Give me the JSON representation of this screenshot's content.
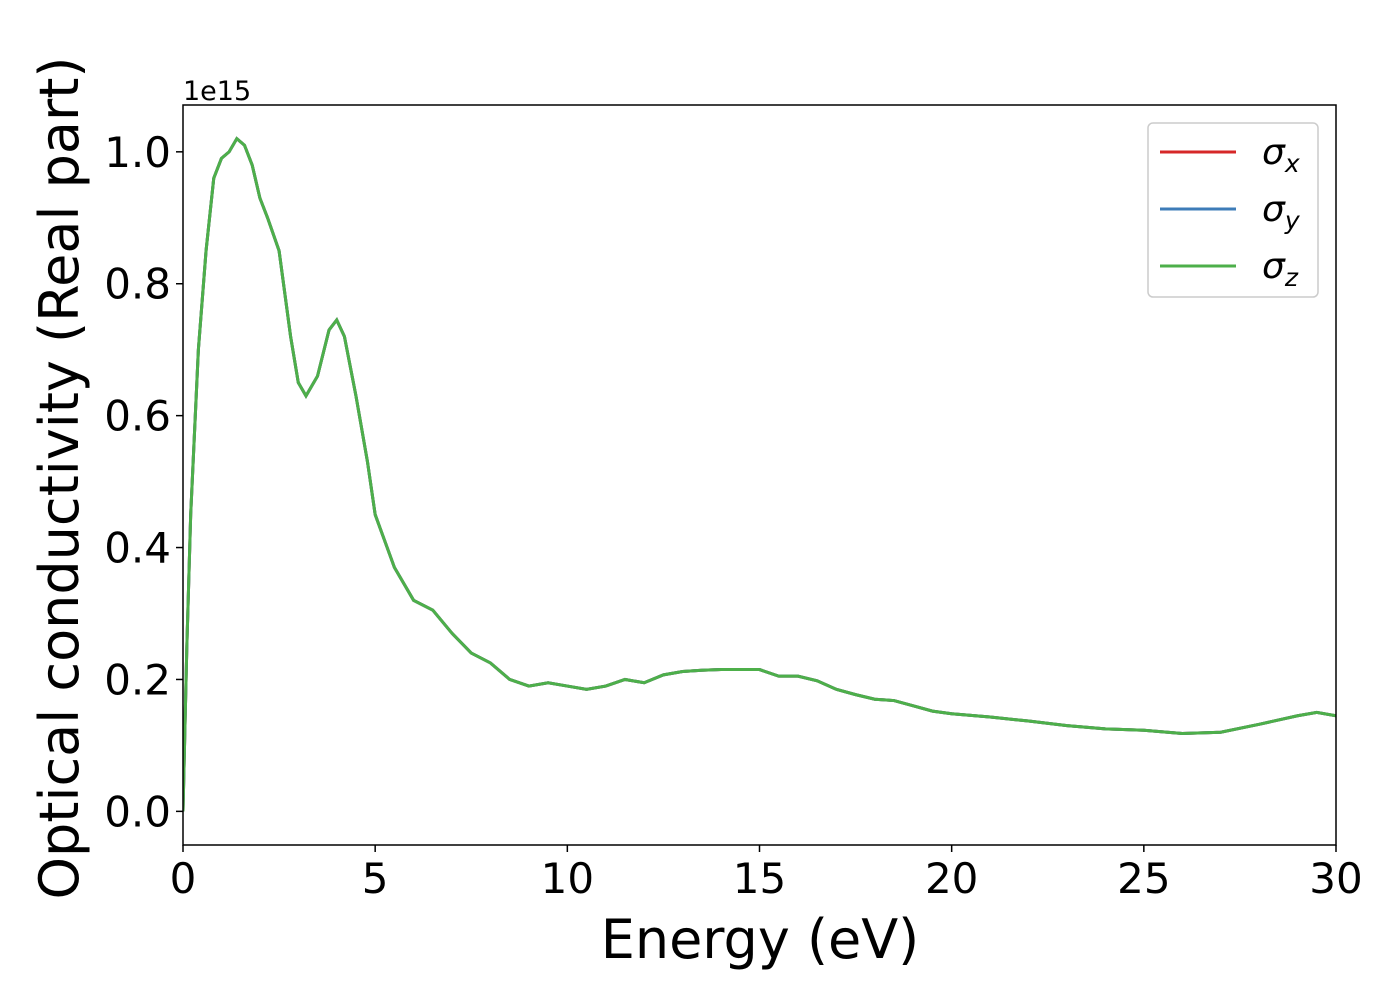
{
  "chart_data": {
    "type": "line",
    "xlabel": "Energy (eV)",
    "ylabel": "Optical conductivity (Real part)",
    "offset_text": "1e15",
    "x": [
      0,
      0.1,
      0.2,
      0.4,
      0.6,
      0.8,
      1.0,
      1.2,
      1.4,
      1.6,
      1.8,
      2.0,
      2.2,
      2.5,
      2.8,
      3.0,
      3.2,
      3.5,
      3.8,
      4.0,
      4.2,
      4.5,
      4.8,
      5.0,
      5.5,
      6.0,
      6.5,
      7.0,
      7.5,
      8.0,
      8.5,
      9.0,
      9.5,
      10,
      10.5,
      11,
      11.5,
      12,
      12.5,
      13,
      13.5,
      14,
      14.5,
      15,
      15.5,
      16,
      16.5,
      17,
      17.5,
      18,
      18.5,
      19,
      19.5,
      20,
      21,
      22,
      23,
      24,
      25,
      26,
      27,
      28,
      29,
      29.5,
      30
    ],
    "series": [
      {
        "name": "σx",
        "color": "#d62728",
        "values": [
          0,
          0.25,
          0.45,
          0.7,
          0.85,
          0.96,
          0.99,
          1.0,
          1.02,
          1.01,
          0.98,
          0.93,
          0.9,
          0.85,
          0.72,
          0.65,
          0.63,
          0.66,
          0.73,
          0.745,
          0.72,
          0.63,
          0.53,
          0.45,
          0.37,
          0.32,
          0.305,
          0.27,
          0.24,
          0.225,
          0.2,
          0.19,
          0.195,
          0.19,
          0.185,
          0.19,
          0.2,
          0.195,
          0.207,
          0.212,
          0.214,
          0.215,
          0.215,
          0.215,
          0.205,
          0.205,
          0.198,
          0.185,
          0.177,
          0.17,
          0.168,
          0.16,
          0.152,
          0.148,
          0.143,
          0.137,
          0.13,
          0.125,
          0.123,
          0.118,
          0.12,
          0.132,
          0.145,
          0.15,
          0.145
        ]
      },
      {
        "name": "σy",
        "color": "#3d7cb8",
        "values": [
          0,
          0.25,
          0.45,
          0.7,
          0.85,
          0.96,
          0.99,
          1.0,
          1.02,
          1.01,
          0.98,
          0.93,
          0.9,
          0.85,
          0.72,
          0.65,
          0.63,
          0.66,
          0.73,
          0.745,
          0.72,
          0.63,
          0.53,
          0.45,
          0.37,
          0.32,
          0.305,
          0.27,
          0.24,
          0.225,
          0.2,
          0.19,
          0.195,
          0.19,
          0.185,
          0.19,
          0.2,
          0.195,
          0.207,
          0.212,
          0.214,
          0.215,
          0.215,
          0.215,
          0.205,
          0.205,
          0.198,
          0.185,
          0.177,
          0.17,
          0.168,
          0.16,
          0.152,
          0.148,
          0.143,
          0.137,
          0.13,
          0.125,
          0.123,
          0.118,
          0.12,
          0.132,
          0.145,
          0.15,
          0.145
        ]
      },
      {
        "name": "σz",
        "color": "#4daf4a",
        "values": [
          0,
          0.25,
          0.45,
          0.7,
          0.85,
          0.96,
          0.99,
          1.0,
          1.02,
          1.01,
          0.98,
          0.93,
          0.9,
          0.85,
          0.72,
          0.65,
          0.63,
          0.66,
          0.73,
          0.745,
          0.72,
          0.63,
          0.53,
          0.45,
          0.37,
          0.32,
          0.305,
          0.27,
          0.24,
          0.225,
          0.2,
          0.19,
          0.195,
          0.19,
          0.185,
          0.19,
          0.2,
          0.195,
          0.207,
          0.212,
          0.214,
          0.215,
          0.215,
          0.215,
          0.205,
          0.205,
          0.198,
          0.185,
          0.177,
          0.17,
          0.168,
          0.16,
          0.152,
          0.148,
          0.143,
          0.137,
          0.13,
          0.125,
          0.123,
          0.118,
          0.12,
          0.132,
          0.145,
          0.15,
          0.145
        ]
      }
    ],
    "xlim": [
      0,
      30
    ],
    "xticks": [
      0,
      5,
      10,
      15,
      20,
      25,
      30
    ],
    "ylim": [
      -0.051,
      1.071
    ],
    "yticks": [
      {
        "value": 0,
        "label": "0.0"
      },
      0.2,
      0.4,
      0.6,
      0.8,
      {
        "value": 1,
        "label": "1.0"
      }
    ],
    "grid": false,
    "legend": "upper right"
  }
}
